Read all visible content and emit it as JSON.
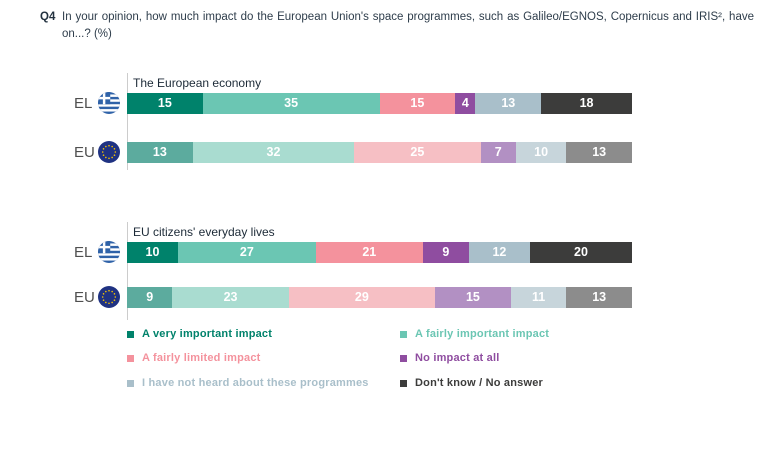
{
  "question": {
    "code": "Q4",
    "text": "In your opinion, how much impact do the European Union's space programmes, such as Galileo/EGNOS, Copernicus and IRIS², have on...? (%)"
  },
  "geo_labels": {
    "el": "EL",
    "eu": "EU"
  },
  "colors": {
    "el": [
      "#00826b",
      "#6bc6b3",
      "#f4929d",
      "#8f4da0",
      "#a9bfca",
      "#3c3c3b"
    ],
    "eu": [
      "#5cab9e",
      "#a9dcd0",
      "#f6bfc4",
      "#b290c3",
      "#c7d5db",
      "#8c8c8c"
    ],
    "axis_line": "#cccccc"
  },
  "chart_data": [
    {
      "type": "bar",
      "title": "The European economy",
      "orientation": "horizontal",
      "stacked": true,
      "xlim": [
        0,
        100
      ],
      "value_labels": "inside, white, percent",
      "categories": [
        "A very important impact",
        "A fairly important impact",
        "A fairly limited impact",
        "No impact at all",
        "I have not heard about these programmes",
        "Don't know / No answer"
      ],
      "series": [
        {
          "name": "EL",
          "palette": "el",
          "values": [
            15,
            35,
            15,
            4,
            13,
            18
          ]
        },
        {
          "name": "EU",
          "palette": "eu",
          "values": [
            13,
            32,
            25,
            7,
            10,
            13
          ]
        }
      ]
    },
    {
      "type": "bar",
      "title": "EU citizens' everyday lives",
      "orientation": "horizontal",
      "stacked": true,
      "xlim": [
        0,
        100
      ],
      "value_labels": "inside, white, percent",
      "categories": [
        "A very important impact",
        "A fairly important impact",
        "A fairly limited impact",
        "No impact at all",
        "I have not heard about these programmes",
        "Don't know / No answer"
      ],
      "series": [
        {
          "name": "EL",
          "palette": "el",
          "values": [
            10,
            27,
            21,
            9,
            12,
            20
          ]
        },
        {
          "name": "EU",
          "palette": "eu",
          "values": [
            9,
            23,
            29,
            15,
            11,
            13
          ]
        }
      ]
    }
  ],
  "legend": {
    "position": "bottom, two columns",
    "items": [
      {
        "label": "A very important impact",
        "color": "#00826b"
      },
      {
        "label": "A fairly important impact",
        "color": "#6bc6b3"
      },
      {
        "label": "A fairly limited impact",
        "color": "#f4929d"
      },
      {
        "label": "No impact at all",
        "color": "#8f4da0"
      },
      {
        "label": "I have not heard about these programmes",
        "color": "#a9bfca"
      },
      {
        "label": "Don't know / No answer",
        "color": "#3c3c3b"
      }
    ]
  }
}
